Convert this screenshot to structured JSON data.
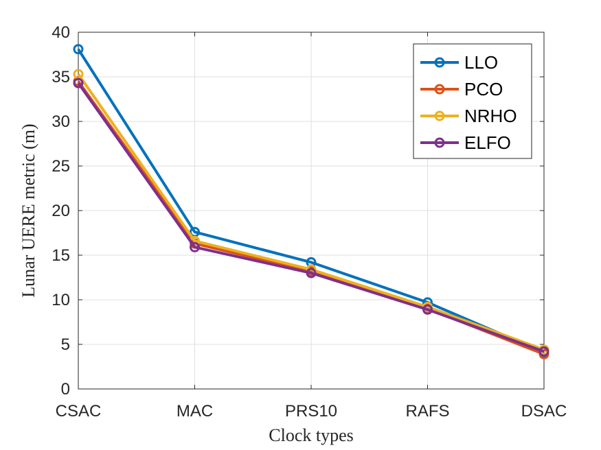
{
  "chart_data": {
    "type": "line",
    "title": "",
    "xlabel": "Clock types",
    "ylabel": "Lunar UERE metric (m)",
    "categories": [
      "CSAC",
      "MAC",
      "PRS10",
      "RAFS",
      "DSAC"
    ],
    "ylim": [
      0,
      40
    ],
    "yticks": [
      0,
      5,
      10,
      15,
      20,
      25,
      30,
      35,
      40
    ],
    "grid": true,
    "legend_position": "top-right",
    "series": [
      {
        "name": "LLO",
        "color": "#0072BD",
        "values": [
          38.1,
          17.6,
          14.2,
          9.7,
          4.1
        ]
      },
      {
        "name": "PCO",
        "color": "#D95319",
        "values": [
          34.5,
          16.3,
          13.2,
          9.0,
          3.9
        ]
      },
      {
        "name": "NRHO",
        "color": "#EDB120",
        "values": [
          35.3,
          16.6,
          13.4,
          9.2,
          4.4
        ]
      },
      {
        "name": "ELFO",
        "color": "#7E2F8E",
        "values": [
          34.3,
          15.9,
          13.0,
          8.9,
          4.2
        ]
      }
    ]
  }
}
